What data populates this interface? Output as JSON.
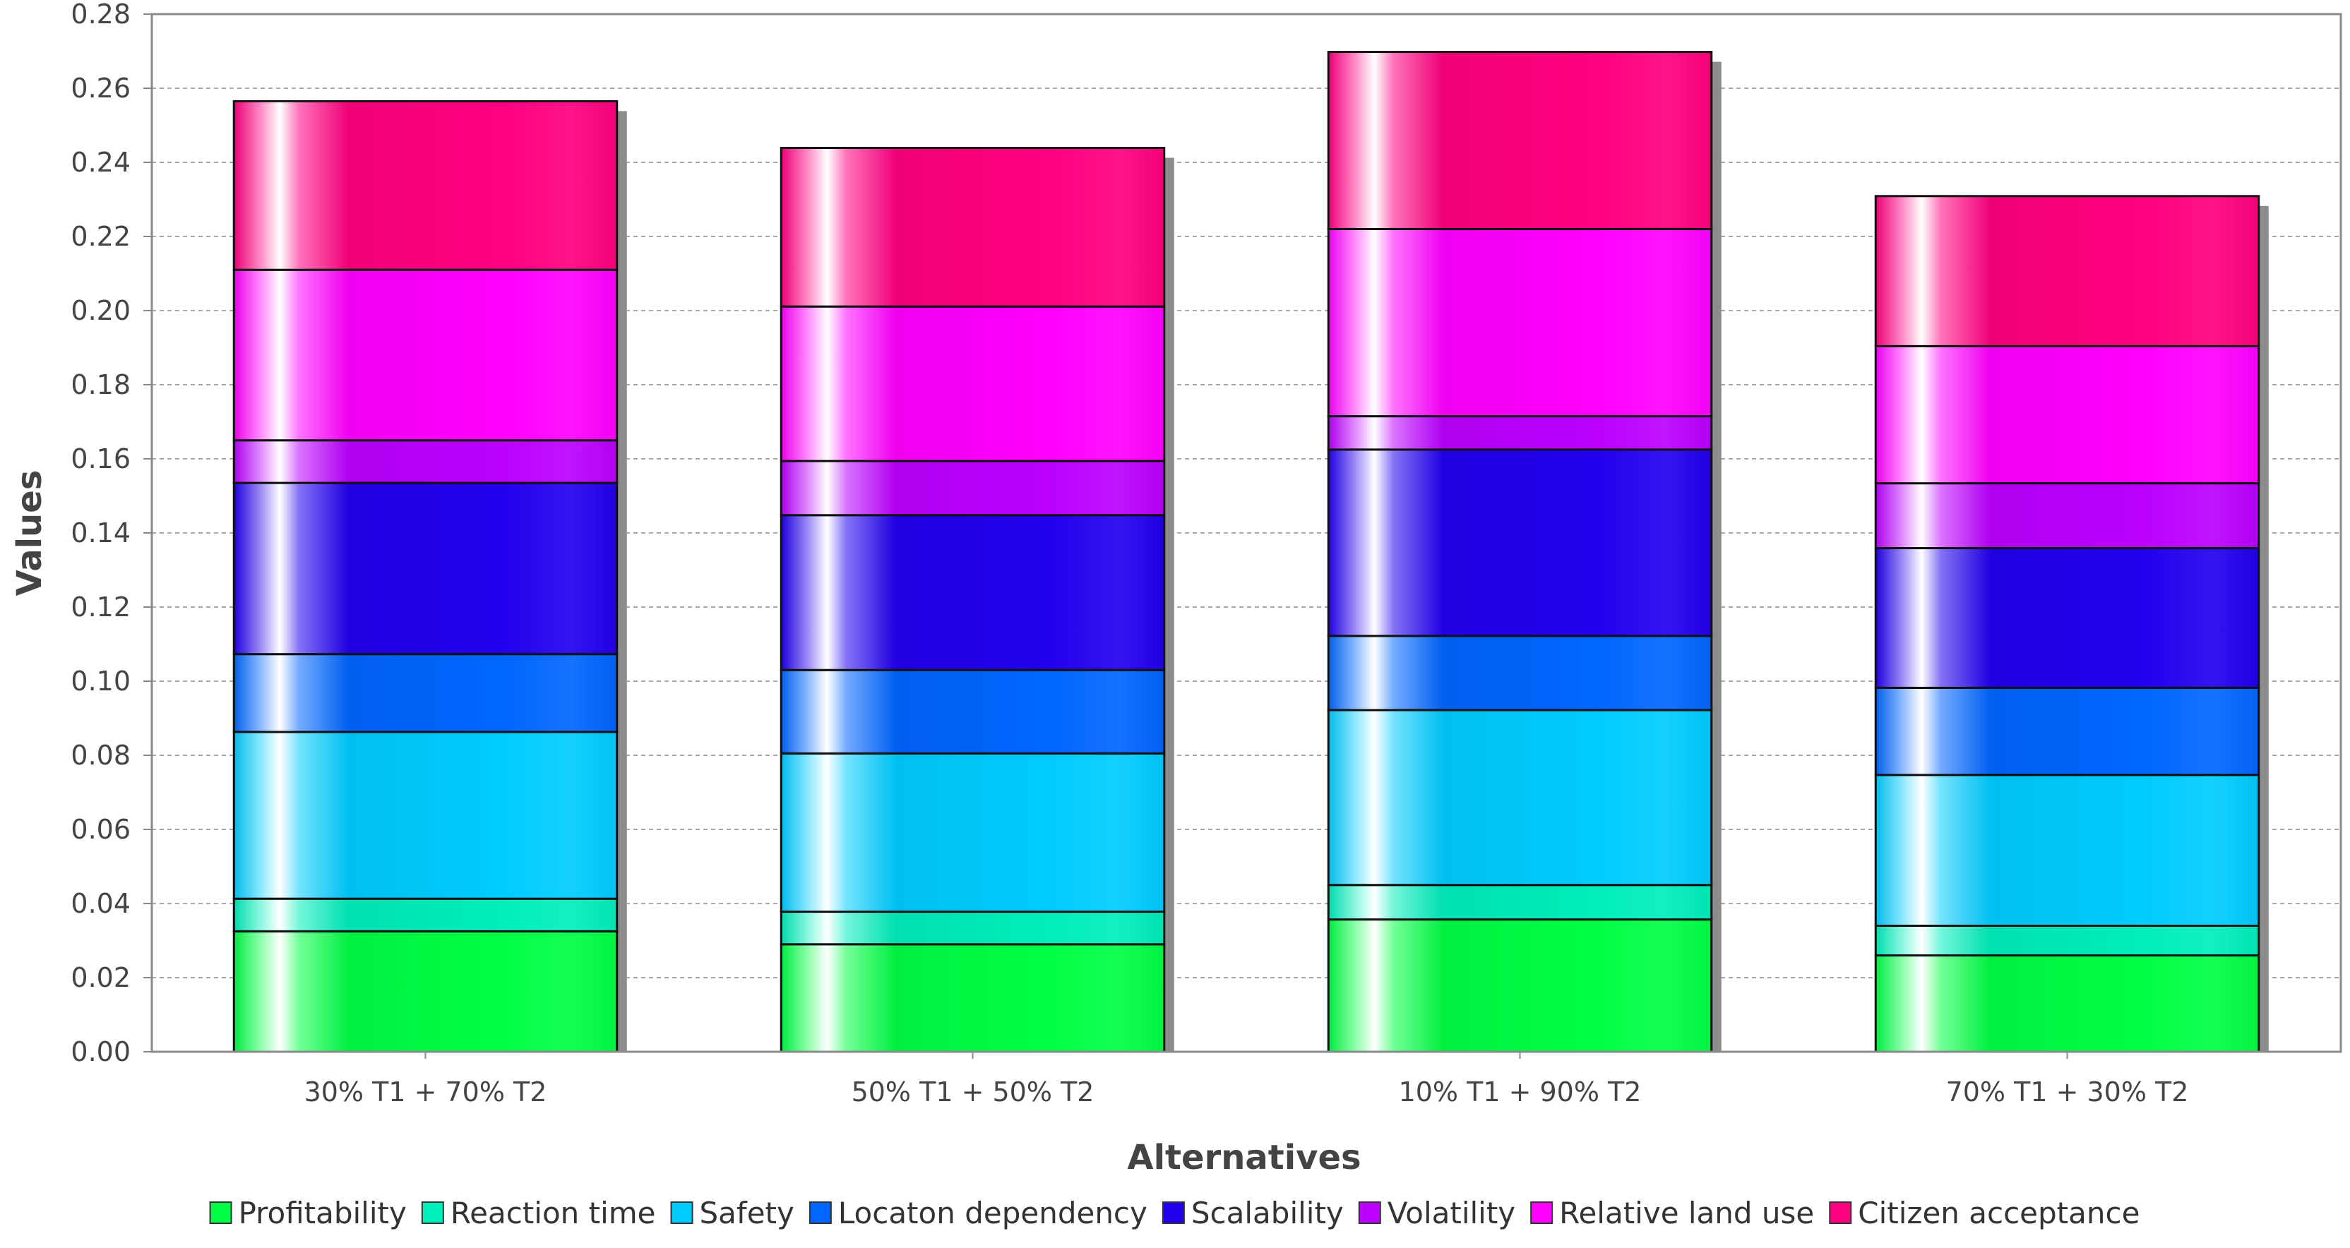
{
  "chart_data": {
    "type": "bar",
    "stacked": true,
    "title": "",
    "xlabel": "Alternatives",
    "ylabel": "Values",
    "ylim": [
      0,
      0.28
    ],
    "ytick_step": 0.02,
    "yticks": [
      "0.00",
      "0.02",
      "0.04",
      "0.06",
      "0.08",
      "0.10",
      "0.12",
      "0.14",
      "0.16",
      "0.18",
      "0.20",
      "0.22",
      "0.24",
      "0.26",
      "0.28"
    ],
    "grid": true,
    "legend_position": "bottom",
    "categories": [
      "30% T1 + 70% T2",
      "50% T1 + 50% T2",
      "10% T1 + 90% T2",
      "70% T1 + 30% T2"
    ],
    "series": [
      {
        "name": "Profitability",
        "color": "#00ff44",
        "values": [
          0.0325,
          0.029,
          0.0357,
          0.026
        ]
      },
      {
        "name": "Reaction time",
        "color": "#00eebb",
        "values": [
          0.0088,
          0.0088,
          0.0093,
          0.008
        ]
      },
      {
        "name": "Safety",
        "color": "#00ccff",
        "values": [
          0.045,
          0.0427,
          0.0472,
          0.0407
        ]
      },
      {
        "name": "Locaton dependency",
        "color": "#0066ff",
        "values": [
          0.021,
          0.0225,
          0.02,
          0.0235
        ]
      },
      {
        "name": "Scalability",
        "color": "#2200ee",
        "values": [
          0.0462,
          0.0418,
          0.0503,
          0.0377
        ]
      },
      {
        "name": "Volatility",
        "color": "#bb00ff",
        "values": [
          0.0115,
          0.0146,
          0.009,
          0.0175
        ]
      },
      {
        "name": "Relative land use",
        "color": "#ff00ff",
        "values": [
          0.046,
          0.0417,
          0.0505,
          0.037
        ]
      },
      {
        "name": "Citizen acceptance",
        "color": "#ff0080",
        "values": [
          0.0455,
          0.0428,
          0.0478,
          0.0405
        ]
      }
    ]
  }
}
